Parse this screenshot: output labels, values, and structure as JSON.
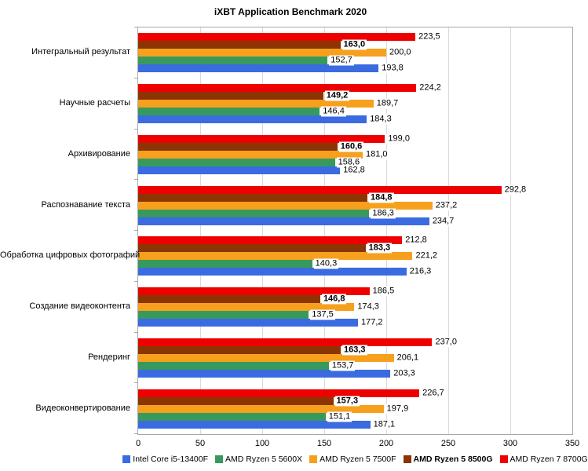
{
  "chart_data": {
    "type": "bar",
    "orientation": "horizontal",
    "title": "iXBT Application Benchmark 2020",
    "xlabel": "",
    "ylabel": "",
    "xlim": [
      0,
      350
    ],
    "xticks": [
      0,
      50,
      100,
      150,
      200,
      250,
      300,
      350
    ],
    "xtick_labels": [
      "0",
      "50",
      "100",
      "150",
      "200",
      "250",
      "300",
      "350"
    ],
    "grid": true,
    "legend_position": "bottom",
    "value_label_decimal_separator": "comma",
    "categories": [
      "Интегральный результат",
      "Научные расчеты",
      "Архивирование",
      "Распознавание текста",
      "Обработка цифровых фотографий",
      "Создание видеоконтента",
      "Рендеринг",
      "Видеоконвертирование"
    ],
    "series": [
      {
        "name": "Intel Core i5-13400F",
        "color": "#3a6be0",
        "bold": false,
        "values": [
          193.8,
          184.3,
          162.8,
          234.7,
          216.3,
          177.2,
          203.3,
          187.1
        ],
        "labels": [
          "193,8",
          "184,3",
          "162,8",
          "234,7",
          "216,3",
          "177,2",
          "203,3",
          "187,1"
        ]
      },
      {
        "name": "AMD Ryzen 5 5600X",
        "color": "#379a5c",
        "bold": false,
        "values": [
          152.7,
          146.4,
          158.6,
          186.3,
          140.3,
          137.5,
          153.7,
          151.1
        ],
        "labels": [
          "152,7",
          "146,4",
          "158,6",
          "186,3",
          "140,3",
          "137,5",
          "153,7",
          "151,1"
        ]
      },
      {
        "name": "AMD Ryzen 5 7500F",
        "color": "#f6a01d",
        "bold": false,
        "values": [
          200.0,
          189.7,
          181.0,
          237.2,
          221.2,
          174.3,
          206.1,
          197.9
        ],
        "labels": [
          "200,0",
          "189,7",
          "181,0",
          "237,2",
          "221,2",
          "174,3",
          "206,1",
          "197,9"
        ]
      },
      {
        "name": "AMD Ryzen 5 8500G",
        "color": "#8c3503",
        "bold": true,
        "values": [
          163.0,
          149.2,
          160.6,
          184.8,
          183.3,
          146.8,
          163.3,
          157.3
        ],
        "labels": [
          "163,0",
          "149,2",
          "160,6",
          "184,8",
          "183,3",
          "146,8",
          "163,3",
          "157,3"
        ]
      },
      {
        "name": "AMD Ryzen 7 8700G",
        "color": "#ee0000",
        "bold": false,
        "values": [
          223.5,
          224.2,
          199.0,
          292.8,
          212.8,
          186.5,
          237.0,
          226.7
        ],
        "labels": [
          "223,5",
          "224,2",
          "199,0",
          "292,8",
          "212,8",
          "186,5",
          "237,0",
          "226,7"
        ]
      }
    ]
  }
}
